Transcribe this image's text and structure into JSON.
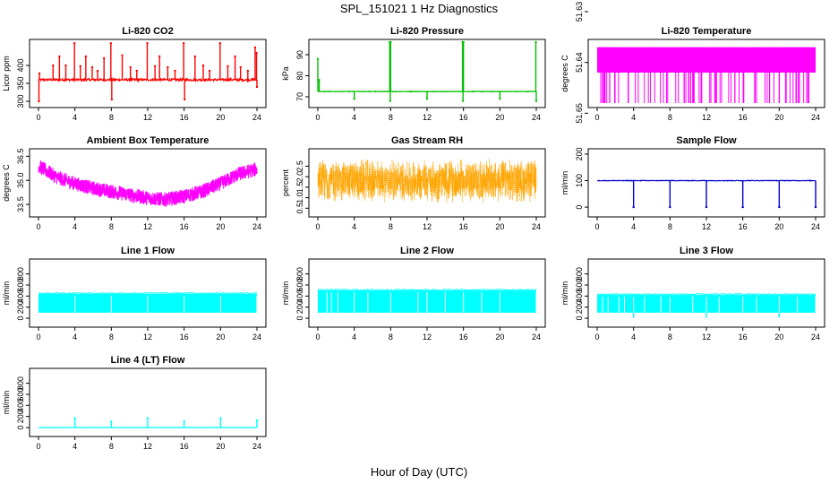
{
  "figure": {
    "title": "SPL_151021  1 Hz Diagnostics",
    "xlabel": "Hour of Day (UTC)"
  },
  "chart_data": [
    {
      "type": "line",
      "title": "Li-820 CO2",
      "ylabel": "Licor ppm",
      "color": "#ff0000",
      "xlim": [
        0,
        24
      ],
      "ylim": [
        295,
        465
      ],
      "xticks": [
        "0",
        "4",
        "8",
        "12",
        "16",
        "20",
        "24"
      ],
      "yticks": [
        {
          "v": 300,
          "label": "300"
        },
        {
          "v": 350,
          "label": "350"
        },
        {
          "v": 400,
          "label": "400"
        }
      ],
      "baseline": 360,
      "pattern": "spiky",
      "noise": 6,
      "spikes": [
        {
          "x": 0.05,
          "y": 300
        },
        {
          "x": 0.1,
          "y": 378
        },
        {
          "x": 1.6,
          "y": 400
        },
        {
          "x": 2.3,
          "y": 425
        },
        {
          "x": 3.0,
          "y": 400
        },
        {
          "x": 3.95,
          "y": 462
        },
        {
          "x": 4.6,
          "y": 398
        },
        {
          "x": 5.2,
          "y": 425
        },
        {
          "x": 5.9,
          "y": 395
        },
        {
          "x": 6.5,
          "y": 385
        },
        {
          "x": 7.2,
          "y": 420
        },
        {
          "x": 7.95,
          "y": 462
        },
        {
          "x": 8.05,
          "y": 305
        },
        {
          "x": 9.2,
          "y": 428
        },
        {
          "x": 10.1,
          "y": 395
        },
        {
          "x": 10.8,
          "y": 385
        },
        {
          "x": 11.95,
          "y": 462
        },
        {
          "x": 12.8,
          "y": 398
        },
        {
          "x": 13.3,
          "y": 425
        },
        {
          "x": 14.2,
          "y": 395
        },
        {
          "x": 15.0,
          "y": 385
        },
        {
          "x": 15.95,
          "y": 462
        },
        {
          "x": 16.05,
          "y": 305
        },
        {
          "x": 17.2,
          "y": 425
        },
        {
          "x": 18.1,
          "y": 400
        },
        {
          "x": 18.8,
          "y": 385
        },
        {
          "x": 19.95,
          "y": 462
        },
        {
          "x": 20.8,
          "y": 398
        },
        {
          "x": 21.6,
          "y": 425
        },
        {
          "x": 22.2,
          "y": 395
        },
        {
          "x": 23.0,
          "y": 385
        },
        {
          "x": 23.8,
          "y": 450
        },
        {
          "x": 23.95,
          "y": 435
        },
        {
          "x": 24.0,
          "y": 340
        }
      ]
    },
    {
      "type": "line",
      "title": "Li-820 Pressure",
      "ylabel": "kPa",
      "color": "#00c000",
      "xlim": [
        0,
        24
      ],
      "ylim": [
        67,
        96
      ],
      "xticks": [
        "0",
        "4",
        "8",
        "12",
        "16",
        "20",
        "24"
      ],
      "yticks": [
        {
          "v": 70,
          "label": "70"
        },
        {
          "v": 80,
          "label": "80"
        },
        {
          "v": 90,
          "label": "90"
        }
      ],
      "baseline": 72.5,
      "pattern": "spiky",
      "noise": 0.3,
      "spikes": [
        {
          "x": 0.0,
          "y": 88
        },
        {
          "x": 0.15,
          "y": 78
        },
        {
          "x": 4.0,
          "y": 69
        },
        {
          "x": 7.9,
          "y": 96
        },
        {
          "x": 7.95,
          "y": 68
        },
        {
          "x": 8.0,
          "y": 96
        },
        {
          "x": 12.0,
          "y": 69
        },
        {
          "x": 15.9,
          "y": 96
        },
        {
          "x": 15.95,
          "y": 68
        },
        {
          "x": 16.0,
          "y": 96
        },
        {
          "x": 20.0,
          "y": 69
        },
        {
          "x": 23.95,
          "y": 96
        },
        {
          "x": 24.0,
          "y": 68
        }
      ]
    },
    {
      "type": "line",
      "title": "Li-820 Temperature",
      "ylabel": "degrees C",
      "color": "#ff00ff",
      "xlim": [
        0,
        24
      ],
      "ylim": [
        51.648,
        51.636
      ],
      "ylim_note": "axis reads 51.65 at bottom and 51.63 near top",
      "xticks": [
        "0",
        "4",
        "8",
        "12",
        "16",
        "20",
        "24"
      ],
      "yticks": [
        {
          "v": 51.65,
          "label": "51.65"
        },
        {
          "v": 51.64,
          "label": "51.64"
        },
        {
          "v": 51.63,
          "label": "51.63"
        }
      ],
      "pattern": "dense-band",
      "band": [
        51.637,
        51.642
      ],
      "drop_to": 51.648,
      "drop_fraction": 0.5
    },
    {
      "type": "line",
      "title": "Ambient Box Temperature",
      "ylabel": "degrees C",
      "color": "#ff00ff",
      "xlim": [
        0,
        24
      ],
      "ylim": [
        33.0,
        36.8
      ],
      "xticks": [
        "0",
        "4",
        "8",
        "12",
        "16",
        "20",
        "24"
      ],
      "yticks": [
        {
          "v": 33.5,
          "label": "33.5"
        },
        {
          "v": 35.0,
          "label": "35.0"
        },
        {
          "v": 36.5,
          "label": "36.5"
        }
      ],
      "pattern": "noisy-curve",
      "noise": 0.45,
      "curve": [
        {
          "x": 0,
          "y": 35.9
        },
        {
          "x": 2,
          "y": 35.2
        },
        {
          "x": 4,
          "y": 34.8
        },
        {
          "x": 6,
          "y": 34.5
        },
        {
          "x": 8,
          "y": 34.3
        },
        {
          "x": 10,
          "y": 34.1
        },
        {
          "x": 12,
          "y": 33.9
        },
        {
          "x": 14,
          "y": 33.8
        },
        {
          "x": 16,
          "y": 34.0
        },
        {
          "x": 18,
          "y": 34.3
        },
        {
          "x": 20,
          "y": 34.8
        },
        {
          "x": 22,
          "y": 35.4
        },
        {
          "x": 24,
          "y": 35.7
        }
      ]
    },
    {
      "type": "line",
      "title": "Gas Stream RH",
      "ylabel": "percent",
      "color": "#ffa500",
      "xlim": [
        0,
        24
      ],
      "ylim": [
        0.3,
        3.2
      ],
      "xticks": [
        "0",
        "4",
        "8",
        "12",
        "16",
        "20",
        "24"
      ],
      "yticks": [
        {
          "v": 0.5,
          "label": "0.5"
        },
        {
          "v": 1.0,
          "label": "1.0"
        },
        {
          "v": 1.5,
          "label": "1.5"
        },
        {
          "v": 2.0,
          "label": "2.0"
        },
        {
          "v": 2.5,
          "label": "2.5"
        }
      ],
      "pattern": "noise-band",
      "band": [
        0.5,
        2.95
      ],
      "center": 1.8,
      "spread": 0.9
    },
    {
      "type": "line",
      "title": "Sample Flow",
      "ylabel": "ml/min",
      "color": "#0000cc",
      "xlim": [
        0,
        24
      ],
      "ylim": [
        -20,
        210
      ],
      "xticks": [
        "0",
        "4",
        "8",
        "12",
        "16",
        "20",
        "24"
      ],
      "yticks": [
        {
          "v": 0,
          "label": "0"
        },
        {
          "v": 100,
          "label": "100"
        },
        {
          "v": 200,
          "label": "200"
        }
      ],
      "baseline": 100,
      "pattern": "spiky",
      "noise": 2,
      "spikes": [
        {
          "x": 4.0,
          "y": 0
        },
        {
          "x": 8.0,
          "y": 0
        },
        {
          "x": 12.0,
          "y": 0
        },
        {
          "x": 16.0,
          "y": 0
        },
        {
          "x": 20.0,
          "y": 0
        },
        {
          "x": 24.0,
          "y": 0
        }
      ]
    },
    {
      "type": "line",
      "title": "Line 1 Flow",
      "ylabel": "ml/min",
      "color": "#00ffff",
      "xlim": [
        0,
        24
      ],
      "ylim": [
        -80,
        1020
      ],
      "xticks": [
        "0",
        "4",
        "8",
        "12",
        "16",
        "20",
        "24"
      ],
      "yticks": [
        {
          "v": 0,
          "label": "0"
        },
        {
          "v": 200,
          "label": "200"
        },
        {
          "v": 400,
          "label": "400"
        },
        {
          "v": 600,
          "label": "600"
        },
        {
          "v": 800,
          "label": "800"
        }
      ],
      "pattern": "filled-band",
      "band": [
        100,
        440
      ],
      "gaps": [
        4,
        8,
        12,
        16,
        20,
        24
      ]
    },
    {
      "type": "line",
      "title": "Line 2 Flow",
      "ylabel": "ml/min",
      "color": "#00ffff",
      "xlim": [
        0,
        24
      ],
      "ylim": [
        -80,
        1020
      ],
      "xticks": [
        "0",
        "4",
        "8",
        "12",
        "16",
        "20",
        "24"
      ],
      "yticks": [
        {
          "v": 0,
          "label": "0"
        },
        {
          "v": 200,
          "label": "200"
        },
        {
          "v": 400,
          "label": "400"
        },
        {
          "v": 600,
          "label": "600"
        },
        {
          "v": 800,
          "label": "800"
        }
      ],
      "pattern": "filled-band",
      "band": [
        100,
        500
      ],
      "gaps": [
        1.0,
        1.5,
        2.2,
        4,
        5.5,
        8,
        11,
        12,
        14,
        16,
        18,
        20,
        24
      ]
    },
    {
      "type": "line",
      "title": "Line 3 Flow",
      "ylabel": "ml/min",
      "color": "#00ffff",
      "xlim": [
        0,
        24
      ],
      "ylim": [
        -80,
        1020
      ],
      "xticks": [
        "0",
        "4",
        "8",
        "12",
        "16",
        "20",
        "24"
      ],
      "yticks": [
        {
          "v": 0,
          "label": "0"
        },
        {
          "v": 200,
          "label": "200"
        },
        {
          "v": 400,
          "label": "400"
        },
        {
          "v": 600,
          "label": "600"
        },
        {
          "v": 800,
          "label": "800"
        }
      ],
      "pattern": "filled-band",
      "band": [
        100,
        420
      ],
      "gaps": [
        0.6,
        1.2,
        2.4,
        3.0,
        4,
        5.2,
        7.0,
        8,
        10.5,
        12,
        13.4,
        16,
        17.5,
        20,
        22,
        24
      ],
      "dips": [
        {
          "x": 4.0,
          "y": 10
        },
        {
          "x": 12.0,
          "y": 10
        },
        {
          "x": 20.0,
          "y": 10
        }
      ]
    },
    {
      "type": "line",
      "title": "Line 4 (LT) Flow",
      "ylabel": "ml/min",
      "color": "#00ffff",
      "xlim": [
        0,
        24
      ],
      "ylim": [
        -80,
        1020
      ],
      "xticks": [
        "0",
        "4",
        "8",
        "12",
        "16",
        "20",
        "24"
      ],
      "yticks": [
        {
          "v": 0,
          "label": "0"
        },
        {
          "v": 200,
          "label": "200"
        },
        {
          "v": 400,
          "label": "400"
        },
        {
          "v": 600,
          "label": "600"
        },
        {
          "v": 800,
          "label": "800"
        }
      ],
      "baseline": 0,
      "pattern": "spiky",
      "noise": 3,
      "spikes": [
        {
          "x": 4.0,
          "y": 170
        },
        {
          "x": 8.0,
          "y": 110
        },
        {
          "x": 12.0,
          "y": 170
        },
        {
          "x": 16.0,
          "y": 110
        },
        {
          "x": 20.0,
          "y": 170
        },
        {
          "x": 24.0,
          "y": 130
        }
      ]
    }
  ]
}
